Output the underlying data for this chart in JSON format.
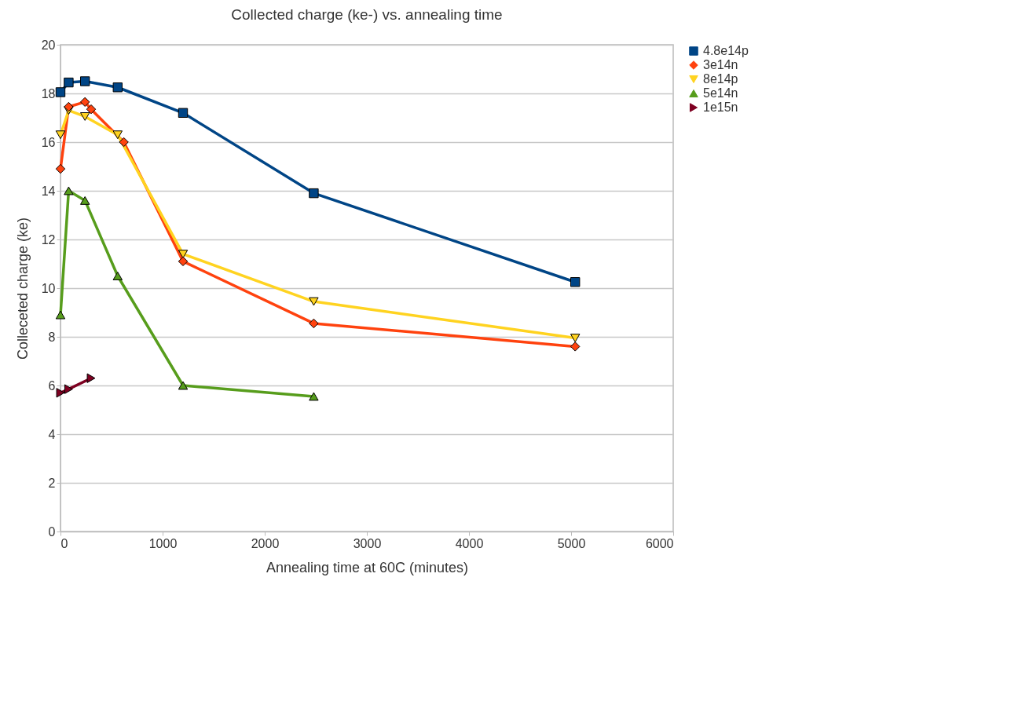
{
  "chart_data": {
    "type": "line",
    "title": "Collected charge (ke-) vs. annealing time",
    "xlabel": "Annealing time at 60C (minutes)",
    "ylabel": "Colleceted charge (ke)",
    "xlim": [
      0,
      6000
    ],
    "xticks": [
      0,
      1000,
      2000,
      3000,
      4000,
      5000,
      6000
    ],
    "ylim": [
      0,
      20
    ],
    "yticks": [
      0,
      2,
      4,
      6,
      8,
      10,
      12,
      14,
      16,
      18,
      20
    ],
    "grid": "y",
    "legend": "right",
    "series": [
      {
        "name": "4.8e14p",
        "color": "#004586",
        "marker": "square",
        "x": [
          0,
          80,
          240,
          560,
          1200,
          2480,
          5040
        ],
        "values": [
          18.05,
          18.45,
          18.5,
          18.25,
          17.2,
          13.9,
          10.25
        ]
      },
      {
        "name": "3e14n",
        "color": "#ff420e",
        "marker": "diamond",
        "x": [
          0,
          80,
          240,
          300,
          620,
          1200,
          2480,
          5040
        ],
        "values": [
          14.9,
          17.45,
          17.65,
          17.35,
          16.0,
          11.1,
          8.55,
          7.6
        ]
      },
      {
        "name": "8e14p",
        "color": "#ffd320",
        "marker": "triangle-down",
        "x": [
          0,
          80,
          240,
          560,
          1200,
          2480,
          5040
        ],
        "values": [
          16.3,
          17.3,
          17.05,
          16.3,
          11.4,
          9.45,
          7.95
        ]
      },
      {
        "name": "5e14n",
        "color": "#579d1c",
        "marker": "triangle",
        "x": [
          0,
          80,
          240,
          560,
          1200,
          2480
        ],
        "values": [
          8.9,
          14.0,
          13.6,
          10.5,
          6.0,
          5.55
        ]
      },
      {
        "name": "1e15n",
        "color": "#7e0021",
        "marker": "triangle-right",
        "x": [
          0,
          80,
          300
        ],
        "values": [
          5.7,
          5.85,
          6.3
        ]
      }
    ]
  }
}
